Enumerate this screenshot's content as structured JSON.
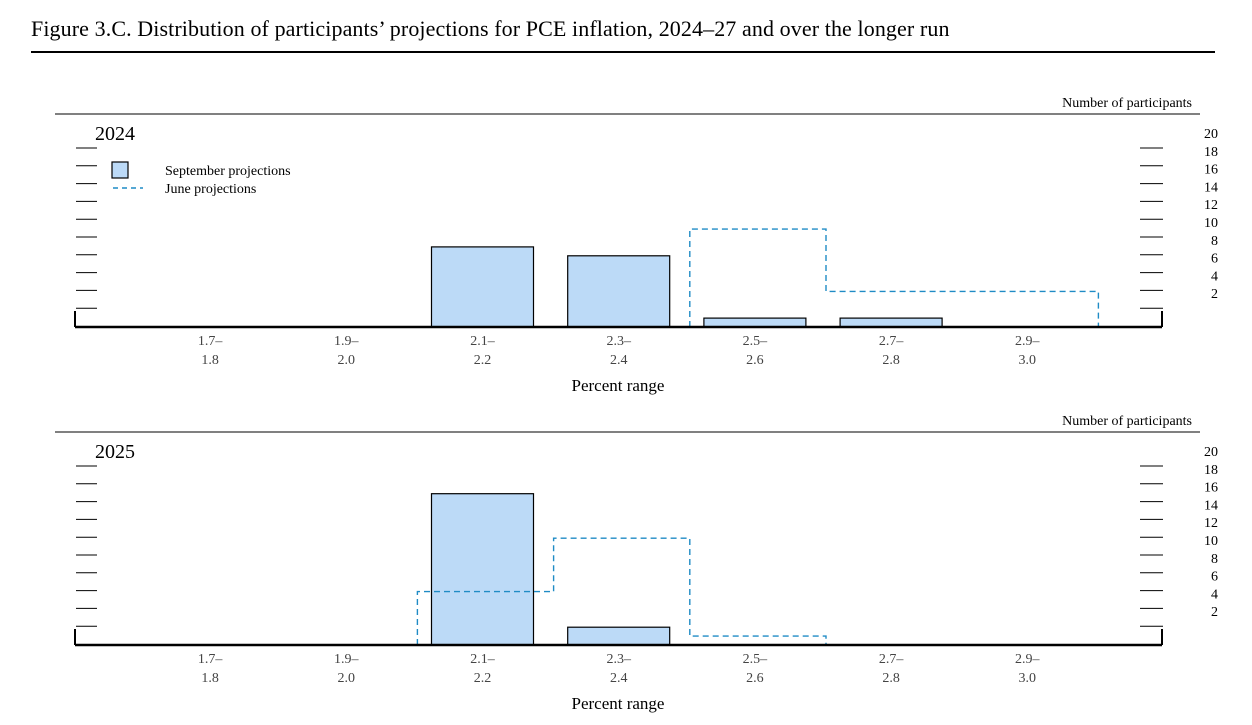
{
  "figure_title": "Figure 3.C. Distribution of participants’ projections for PCE inflation, 2024–27 and over the longer run",
  "colors": {
    "bar_fill": "#bcdaf7",
    "bar_stroke": "#000000",
    "june_line": "#1f8bc5"
  },
  "chart_data": [
    {
      "type": "bar",
      "panel_title": "2024",
      "y_axis_label": "Number of participants",
      "xlabel": "Percent range",
      "ylim": [
        0,
        20
      ],
      "y_ticks": [
        "2",
        "4",
        "6",
        "8",
        "10",
        "12",
        "14",
        "16",
        "18",
        "20"
      ],
      "categories": [
        "1.7–1.8",
        "1.9–2.0",
        "2.1–2.2",
        "2.3–2.4",
        "2.5–2.6",
        "2.7–2.8",
        "2.9–3.0"
      ],
      "category_labels": [
        [
          "1.7–",
          "1.8"
        ],
        [
          "1.9–",
          "2.0"
        ],
        [
          "2.1–",
          "2.2"
        ],
        [
          "2.3–",
          "2.4"
        ],
        [
          "2.5–",
          "2.6"
        ],
        [
          "2.7–",
          "2.8"
        ],
        [
          "2.9–",
          "3.0"
        ]
      ],
      "legend": {
        "september": "September projections",
        "june": "June projections"
      },
      "series": [
        {
          "name": "September projections",
          "style": "bar",
          "values": [
            0,
            0,
            9,
            8,
            1,
            1,
            0
          ]
        },
        {
          "name": "June projections",
          "style": "dashed-outline",
          "values": [
            0,
            0,
            0,
            0,
            11,
            4,
            4
          ]
        }
      ]
    },
    {
      "type": "bar",
      "panel_title": "2025",
      "y_axis_label": "Number of participants",
      "xlabel": "Percent range",
      "ylim": [
        0,
        20
      ],
      "y_ticks": [
        "2",
        "4",
        "6",
        "8",
        "10",
        "12",
        "14",
        "16",
        "18",
        "20"
      ],
      "categories": [
        "1.7–1.8",
        "1.9–2.0",
        "2.1–2.2",
        "2.3–2.4",
        "2.5–2.6",
        "2.7–2.8",
        "2.9–3.0"
      ],
      "category_labels": [
        [
          "1.7–",
          "1.8"
        ],
        [
          "1.9–",
          "2.0"
        ],
        [
          "2.1–",
          "2.2"
        ],
        [
          "2.3–",
          "2.4"
        ],
        [
          "2.5–",
          "2.6"
        ],
        [
          "2.7–",
          "2.8"
        ],
        [
          "2.9–",
          "3.0"
        ]
      ],
      "series": [
        {
          "name": "September projections",
          "style": "bar",
          "values": [
            0,
            0,
            17,
            2,
            0,
            0,
            0
          ]
        },
        {
          "name": "June projections",
          "style": "dashed-outline",
          "values": [
            0,
            0,
            6,
            12,
            1,
            0,
            0
          ]
        }
      ]
    }
  ]
}
